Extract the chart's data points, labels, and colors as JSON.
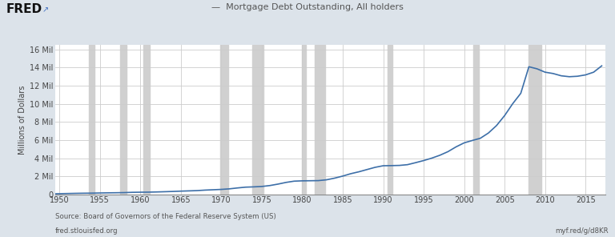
{
  "title": "Mortgage Debt Outstanding, All holders",
  "ylabel": "Millions of Dollars",
  "source_text": "Source: Board of Governors of the Federal Reserve System (US)",
  "fred_url": "fred.stlouisfed.org",
  "myf_url": "myf.red/g/d8KR",
  "xlim": [
    1949.5,
    2017.5
  ],
  "ylim": [
    0,
    16500000
  ],
  "yticks": [
    0,
    2000000,
    4000000,
    6000000,
    8000000,
    10000000,
    12000000,
    14000000,
    16000000
  ],
  "ytick_labels": [
    "0",
    "2 Mil",
    "4 Mil",
    "6 Mil",
    "8 Mil",
    "10 Mil",
    "12 Mil",
    "14 Mil",
    "16 Mil"
  ],
  "xticks": [
    1950,
    1955,
    1960,
    1965,
    1970,
    1975,
    1980,
    1985,
    1990,
    1995,
    2000,
    2005,
    2010,
    2015
  ],
  "line_color": "#3d6fa8",
  "bg_color": "#dce3ea",
  "plot_bg_color": "#ffffff",
  "recession_color": "#d0d0d0",
  "recession_alpha": 1.0,
  "recessions": [
    [
      1953.67,
      1954.33
    ],
    [
      1957.5,
      1958.33
    ],
    [
      1960.33,
      1961.17
    ],
    [
      1969.83,
      1970.83
    ],
    [
      1973.83,
      1975.17
    ],
    [
      1980.0,
      1980.5
    ],
    [
      1981.5,
      1982.83
    ],
    [
      1990.5,
      1991.17
    ],
    [
      2001.17,
      2001.83
    ],
    [
      2007.92,
      2009.5
    ]
  ],
  "years": [
    1949,
    1950,
    1951,
    1952,
    1953,
    1954,
    1955,
    1956,
    1957,
    1958,
    1959,
    1960,
    1961,
    1962,
    1963,
    1964,
    1965,
    1966,
    1967,
    1968,
    1969,
    1970,
    1971,
    1972,
    1973,
    1974,
    1975,
    1976,
    1977,
    1978,
    1979,
    1980,
    1981,
    1982,
    1983,
    1984,
    1985,
    1986,
    1987,
    1988,
    1989,
    1990,
    1991,
    1992,
    1993,
    1994,
    1995,
    1996,
    1997,
    1998,
    1999,
    2000,
    2001,
    2002,
    2003,
    2004,
    2005,
    2006,
    2007,
    2008,
    2009,
    2010,
    2011,
    2012,
    2013,
    2014,
    2015,
    2016,
    2017
  ],
  "values": [
    55000,
    72900,
    90700,
    109800,
    124500,
    133000,
    151400,
    165900,
    177200,
    192500,
    222100,
    236600,
    243100,
    263400,
    290300,
    318800,
    354500,
    382500,
    412900,
    467800,
    507200,
    545800,
    607600,
    706900,
    793600,
    825700,
    869000,
    971800,
    1130900,
    1319000,
    1456600,
    1492800,
    1503800,
    1517400,
    1606800,
    1789800,
    2017700,
    2282600,
    2492700,
    2740500,
    2985200,
    3159800,
    3175000,
    3196200,
    3279200,
    3499600,
    3733900,
    4000000,
    4319000,
    4717000,
    5245000,
    5687000,
    5950000,
    6196000,
    6776000,
    7599000,
    8701000,
    10016000,
    11165000,
    14100000,
    13875000,
    13500000,
    13350000,
    13100000,
    13000000,
    13050000,
    13200000,
    13500000,
    14200000
  ]
}
